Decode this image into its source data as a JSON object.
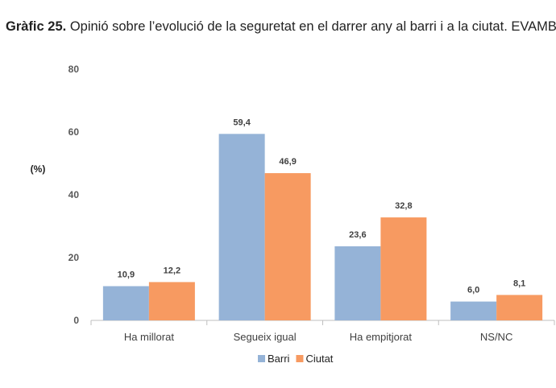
{
  "header": {
    "title_bold": "Gràfic 25.",
    "title_rest": "Opinió sobre l’evolució de la seguretat en el darrer any al barri i a la ciutat. EVAMB,"
  },
  "chart_data": {
    "type": "bar",
    "categories": [
      "Ha millorat",
      "Segueix igual",
      "Ha empitjorat",
      "NS/NC"
    ],
    "series": [
      {
        "name": "Barri",
        "values": [
          10.9,
          59.4,
          23.6,
          6.0
        ],
        "labels": [
          "10,9",
          "59,4",
          "23,6",
          "6,0"
        ],
        "color": "#95B3D7"
      },
      {
        "name": "Ciutat",
        "values": [
          12.2,
          46.9,
          32.8,
          8.1
        ],
        "labels": [
          "12,2",
          "46,9",
          "32,8",
          "8,1"
        ],
        "color": "#F79A61"
      }
    ],
    "ylabel": "(%)",
    "ylim": [
      0,
      80
    ],
    "yticks": [
      0,
      20,
      40,
      60,
      80
    ],
    "grid": false,
    "legend_position": "bottom"
  }
}
